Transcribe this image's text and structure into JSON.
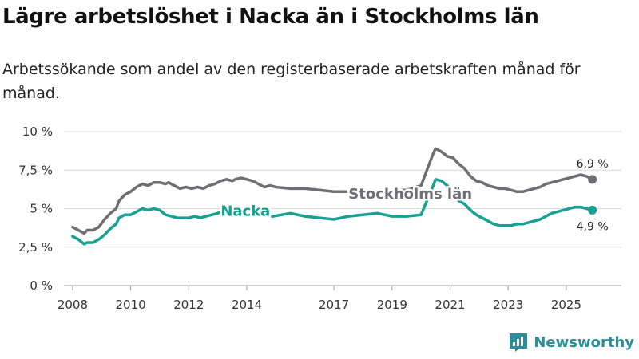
{
  "header": {
    "title": "Lägre arbetslöshet i Nacka än i Stockholms län",
    "subtitle": "Arbetssökande som andel av den registerbaserade arbetskraften månad för månad."
  },
  "branding": {
    "logo_text": "Newsworthy",
    "logo_color": "#2a8f9a"
  },
  "chart_data": {
    "type": "line",
    "ylim": [
      0,
      10
    ],
    "xlim": [
      2007.7,
      2026.9
    ],
    "y_ticks": [
      {
        "value": 0,
        "label": "0 %"
      },
      {
        "value": 2.5,
        "label": "2,5 %"
      },
      {
        "value": 5,
        "label": "5 %"
      },
      {
        "value": 7.5,
        "label": "7,5 %"
      },
      {
        "value": 10,
        "label": "10 %"
      }
    ],
    "x_ticks": [
      {
        "value": 2008,
        "label": "2008"
      },
      {
        "value": 2010,
        "label": "2010"
      },
      {
        "value": 2012,
        "label": "2012"
      },
      {
        "value": 2014,
        "label": "2014"
      },
      {
        "value": 2017,
        "label": "2017"
      },
      {
        "value": 2019,
        "label": "2019"
      },
      {
        "value": 2021,
        "label": "2021"
      },
      {
        "value": 2023,
        "label": "2023"
      },
      {
        "value": 2025,
        "label": "2025"
      }
    ],
    "series": [
      {
        "name": "Stockholms län",
        "color": "#6e6e74",
        "end_label": "6,9 %",
        "points": [
          [
            2008.0,
            3.8
          ],
          [
            2008.2,
            3.6
          ],
          [
            2008.4,
            3.4
          ],
          [
            2008.5,
            3.6
          ],
          [
            2008.7,
            3.6
          ],
          [
            2008.9,
            3.8
          ],
          [
            2009.1,
            4.3
          ],
          [
            2009.3,
            4.7
          ],
          [
            2009.5,
            5.0
          ],
          [
            2009.6,
            5.5
          ],
          [
            2009.8,
            5.9
          ],
          [
            2010.0,
            6.1
          ],
          [
            2010.2,
            6.4
          ],
          [
            2010.4,
            6.6
          ],
          [
            2010.6,
            6.5
          ],
          [
            2010.8,
            6.7
          ],
          [
            2011.0,
            6.7
          ],
          [
            2011.2,
            6.6
          ],
          [
            2011.3,
            6.7
          ],
          [
            2011.5,
            6.5
          ],
          [
            2011.7,
            6.3
          ],
          [
            2011.9,
            6.4
          ],
          [
            2012.1,
            6.3
          ],
          [
            2012.3,
            6.4
          ],
          [
            2012.5,
            6.3
          ],
          [
            2012.7,
            6.5
          ],
          [
            2012.9,
            6.6
          ],
          [
            2013.1,
            6.8
          ],
          [
            2013.3,
            6.9
          ],
          [
            2013.5,
            6.8
          ],
          [
            2013.6,
            6.9
          ],
          [
            2013.8,
            7.0
          ],
          [
            2014.0,
            6.9
          ],
          [
            2014.2,
            6.8
          ],
          [
            2014.4,
            6.6
          ],
          [
            2014.6,
            6.4
          ],
          [
            2014.8,
            6.5
          ],
          [
            2015.0,
            6.4
          ],
          [
            2015.5,
            6.3
          ],
          [
            2016.0,
            6.3
          ],
          [
            2016.5,
            6.2
          ],
          [
            2017.0,
            6.1
          ],
          [
            2017.5,
            6.1
          ],
          [
            2018.0,
            6.0
          ],
          [
            2018.5,
            6.1
          ],
          [
            2019.0,
            6.2
          ],
          [
            2019.5,
            6.2
          ],
          [
            2020.0,
            6.5
          ],
          [
            2020.2,
            7.5
          ],
          [
            2020.4,
            8.5
          ],
          [
            2020.5,
            8.9
          ],
          [
            2020.7,
            8.7
          ],
          [
            2020.9,
            8.4
          ],
          [
            2021.1,
            8.3
          ],
          [
            2021.3,
            7.9
          ],
          [
            2021.5,
            7.6
          ],
          [
            2021.7,
            7.1
          ],
          [
            2021.9,
            6.8
          ],
          [
            2022.1,
            6.7
          ],
          [
            2022.3,
            6.5
          ],
          [
            2022.5,
            6.4
          ],
          [
            2022.7,
            6.3
          ],
          [
            2022.9,
            6.3
          ],
          [
            2023.1,
            6.2
          ],
          [
            2023.3,
            6.1
          ],
          [
            2023.5,
            6.1
          ],
          [
            2023.7,
            6.2
          ],
          [
            2023.9,
            6.3
          ],
          [
            2024.1,
            6.4
          ],
          [
            2024.3,
            6.6
          ],
          [
            2024.5,
            6.7
          ],
          [
            2024.7,
            6.8
          ],
          [
            2024.9,
            6.9
          ],
          [
            2025.1,
            7.0
          ],
          [
            2025.3,
            7.1
          ],
          [
            2025.5,
            7.2
          ],
          [
            2025.7,
            7.1
          ],
          [
            2025.9,
            6.9
          ]
        ]
      },
      {
        "name": "Nacka",
        "color": "#16a193",
        "end_label": "4,9 %",
        "points": [
          [
            2008.0,
            3.2
          ],
          [
            2008.2,
            3.0
          ],
          [
            2008.4,
            2.7
          ],
          [
            2008.5,
            2.8
          ],
          [
            2008.7,
            2.8
          ],
          [
            2008.9,
            3.0
          ],
          [
            2009.1,
            3.3
          ],
          [
            2009.3,
            3.7
          ],
          [
            2009.5,
            4.0
          ],
          [
            2009.6,
            4.4
          ],
          [
            2009.8,
            4.6
          ],
          [
            2010.0,
            4.6
          ],
          [
            2010.2,
            4.8
          ],
          [
            2010.4,
            5.0
          ],
          [
            2010.6,
            4.9
          ],
          [
            2010.8,
            5.0
          ],
          [
            2011.0,
            4.9
          ],
          [
            2011.2,
            4.6
          ],
          [
            2011.4,
            4.5
          ],
          [
            2011.6,
            4.4
          ],
          [
            2011.8,
            4.4
          ],
          [
            2012.0,
            4.4
          ],
          [
            2012.2,
            4.5
          ],
          [
            2012.4,
            4.4
          ],
          [
            2012.6,
            4.5
          ],
          [
            2012.8,
            4.6
          ],
          [
            2013.0,
            4.7
          ],
          [
            2013.2,
            4.9
          ],
          [
            2013.4,
            4.9
          ],
          [
            2013.6,
            4.8
          ],
          [
            2013.8,
            4.8
          ],
          [
            2014.0,
            4.7
          ],
          [
            2014.3,
            4.6
          ],
          [
            2014.6,
            4.5
          ],
          [
            2014.9,
            4.5
          ],
          [
            2015.2,
            4.6
          ],
          [
            2015.5,
            4.7
          ],
          [
            2016.0,
            4.5
          ],
          [
            2016.5,
            4.4
          ],
          [
            2017.0,
            4.3
          ],
          [
            2017.5,
            4.5
          ],
          [
            2018.0,
            4.6
          ],
          [
            2018.5,
            4.7
          ],
          [
            2019.0,
            4.5
          ],
          [
            2019.5,
            4.5
          ],
          [
            2020.0,
            4.6
          ],
          [
            2020.2,
            5.5
          ],
          [
            2020.4,
            6.4
          ],
          [
            2020.5,
            6.9
          ],
          [
            2020.7,
            6.8
          ],
          [
            2020.9,
            6.5
          ],
          [
            2021.1,
            6.0
          ],
          [
            2021.3,
            5.5
          ],
          [
            2021.5,
            5.3
          ],
          [
            2021.7,
            4.9
          ],
          [
            2021.9,
            4.6
          ],
          [
            2022.1,
            4.4
          ],
          [
            2022.3,
            4.2
          ],
          [
            2022.5,
            4.0
          ],
          [
            2022.7,
            3.9
          ],
          [
            2022.9,
            3.9
          ],
          [
            2023.1,
            3.9
          ],
          [
            2023.3,
            4.0
          ],
          [
            2023.5,
            4.0
          ],
          [
            2023.7,
            4.1
          ],
          [
            2023.9,
            4.2
          ],
          [
            2024.1,
            4.3
          ],
          [
            2024.3,
            4.5
          ],
          [
            2024.5,
            4.7
          ],
          [
            2024.7,
            4.8
          ],
          [
            2024.9,
            4.9
          ],
          [
            2025.1,
            5.0
          ],
          [
            2025.3,
            5.1
          ],
          [
            2025.5,
            5.1
          ],
          [
            2025.7,
            5.0
          ],
          [
            2025.9,
            4.9
          ]
        ]
      }
    ]
  }
}
